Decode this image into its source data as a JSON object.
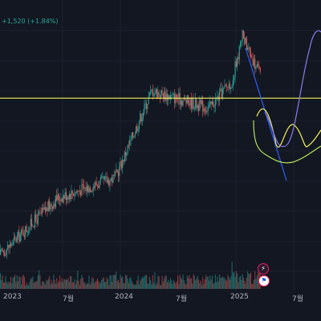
{
  "header": {
    "change_text": "+1,520 (+1.84%)"
  },
  "x_axis": {
    "labels": [
      "2023",
      "7월",
      "2024",
      "7월",
      "2025",
      "7월"
    ]
  },
  "colors": {
    "background": "#131722",
    "grid": "#1e222d",
    "up": "#26a69a",
    "down": "#ef5350",
    "horizontal_line": "#f0f05a",
    "trendline": "#2962ff",
    "projection_yellow": "#f0f05a",
    "projection_purple": "#8c7cf0",
    "projection_green": "#b5e35a"
  },
  "icons": {
    "event_1": "lightning-icon",
    "event_2": "flag-icon"
  },
  "chart_data": {
    "type": "candlestick",
    "title": "",
    "xlabel": "",
    "ylabel": "",
    "x_ticks": [
      "2023",
      "7월",
      "2024",
      "7월",
      "2025",
      "7월"
    ],
    "price_range": [
      0,
      100
    ],
    "segments": [
      {
        "from_index": 0,
        "to_index": 55,
        "start": 4,
        "end": 27
      },
      {
        "from_index": 55,
        "to_index": 110,
        "start": 27,
        "end": 35
      },
      {
        "from_index": 110,
        "to_index": 145,
        "start": 35,
        "end": 70
      },
      {
        "from_index": 145,
        "to_index": 200,
        "start": 70,
        "end": 63
      },
      {
        "from_index": 200,
        "to_index": 222,
        "start": 63,
        "end": 74
      },
      {
        "from_index": 222,
        "to_index": 232,
        "start": 74,
        "end": 92
      },
      {
        "from_index": 232,
        "to_index": 250,
        "start": 92,
        "end": 75
      }
    ],
    "candle_count": 250,
    "horizontal_level": 67,
    "gridlines": true,
    "legend": "none"
  }
}
